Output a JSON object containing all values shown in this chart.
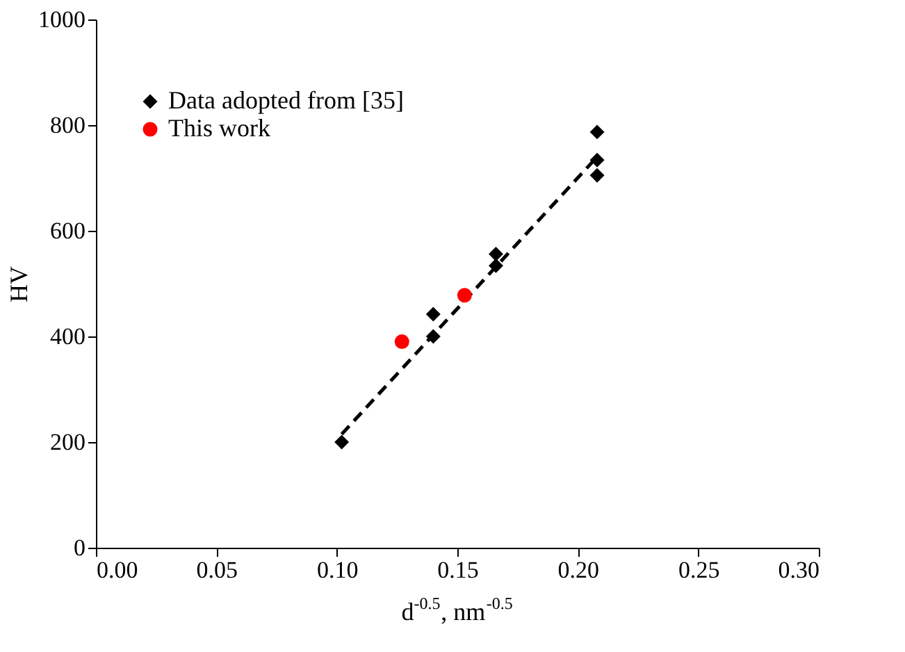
{
  "chart_data": {
    "type": "scatter",
    "xlabel": "d$^{-0.5}$, nm$^{-0.5}$",
    "ylabel": "HV",
    "xlim": [
      0,
      0.3
    ],
    "xticks": [
      {
        "value": 0,
        "label": "0.00"
      },
      0.05,
      {
        "value": 0.1,
        "label": "0.10"
      },
      0.15,
      {
        "value": 0.2,
        "label": "0.20"
      },
      0.25,
      {
        "value": 0.3,
        "label": "0.30"
      }
    ],
    "ylim": [
      0,
      1000
    ],
    "yticks": [
      0,
      200,
      400,
      600,
      800,
      1000
    ],
    "grid": false,
    "legend": "top left",
    "series": [
      {
        "name": "Data adopted from [35]",
        "color": "#000000",
        "marker": "diamond",
        "x": [
          0.102,
          0.14,
          0.14,
          0.166,
          0.166,
          0.208,
          0.208,
          0.208
        ],
        "values": [
          200,
          400,
          442,
          534,
          556,
          705,
          734,
          787
        ]
      },
      {
        "name": "This work",
        "color": "#ff0000",
        "marker": "circle",
        "x": [
          0.127,
          0.153
        ],
        "values": [
          390,
          478
        ]
      },
      {
        "type": "line",
        "color": "#000000",
        "line_style": "dashed",
        "marker": "none",
        "x": [
          0.102,
          0.208
        ],
        "values": [
          215,
          740
        ]
      }
    ]
  }
}
